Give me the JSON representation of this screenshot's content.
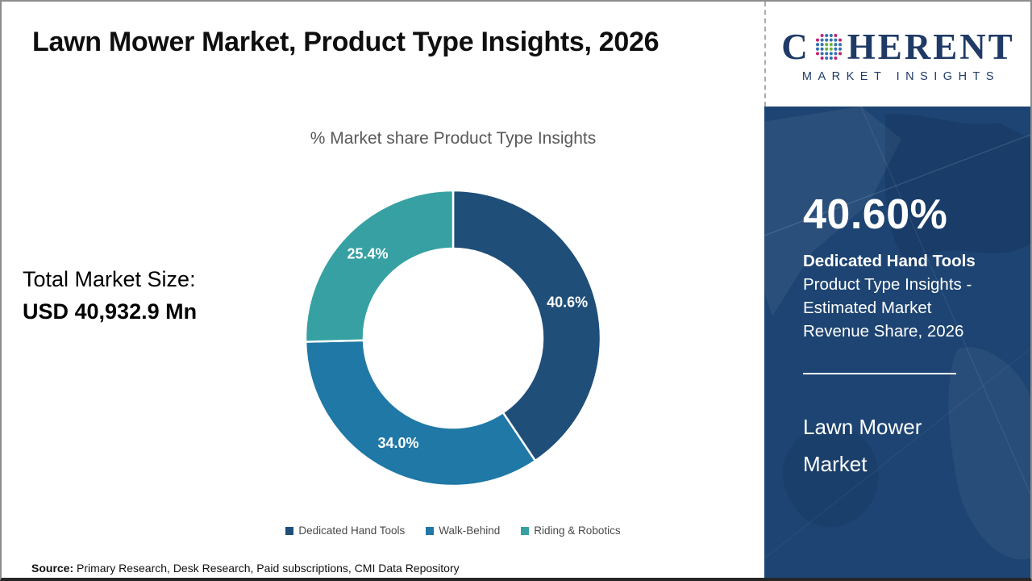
{
  "header": {
    "title": "Lawn Mower Market, Product Type Insights, 2026"
  },
  "logo": {
    "brand_first_letter": "C",
    "brand_rest": "HERENT",
    "subtitle": "MARKET INSIGHTS",
    "brand_color": "#1f3a66",
    "globe_dot_colors": {
      "outer": "#c2256f",
      "mid": "#3472b2",
      "inner": "#6cb33f"
    }
  },
  "left_panel": {
    "label": "Total Market Size:",
    "value": "USD 40,932.9 Mn"
  },
  "chart_data": {
    "type": "pie",
    "donut": true,
    "title": "% Market share Product Type Insights",
    "categories": [
      "Dedicated Hand Tools",
      "Walk-Behind",
      "Riding & Robotics"
    ],
    "values": [
      40.6,
      34.0,
      25.4
    ],
    "slice_labels": [
      "40.6%",
      "34.0%",
      "25.4%"
    ],
    "colors": [
      "#1f4e79",
      "#1f78a6",
      "#37a0a2"
    ],
    "legend_position": "bottom",
    "start_angle_deg": 0,
    "direction": "clockwise"
  },
  "sidebar": {
    "stat_value": "40.60%",
    "stat_label_bold": "Dedicated Hand Tools",
    "stat_description": "Product Type Insights - Estimated Market Revenue Share, 2026",
    "market_name": "Lawn Mower Market",
    "background_color": "#1d4472"
  },
  "footer": {
    "source_label": "Source:",
    "source_text": " Primary Research, Desk Research, Paid subscriptions, CMI Data Repository"
  }
}
